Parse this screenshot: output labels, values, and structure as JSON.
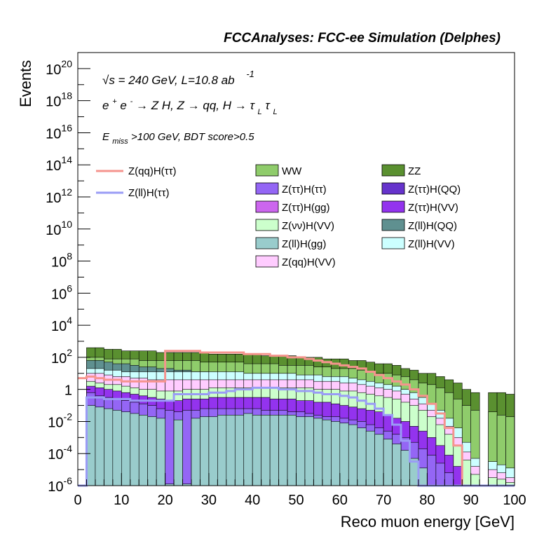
{
  "chart_data": {
    "type": "area",
    "title": "FCCAnalyses: FCC-ee Simulation (Delphes)",
    "xlabel": "Reco muon energy [GeV]",
    "ylabel": "Events",
    "xlim": [
      0,
      100
    ],
    "ylim": [
      1e-06,
      1e+21
    ],
    "ylog": true,
    "x_ticks": [
      "0",
      "10",
      "20",
      "30",
      "40",
      "50",
      "60",
      "70",
      "80",
      "90",
      "100"
    ],
    "y_ticks": [
      {
        "base": "10",
        "exp": "20"
      },
      {
        "base": "10",
        "exp": "18"
      },
      {
        "base": "10",
        "exp": "16"
      },
      {
        "base": "10",
        "exp": "14"
      },
      {
        "base": "10",
        "exp": "12"
      },
      {
        "base": "10",
        "exp": "10"
      },
      {
        "base": "10",
        "exp": "8"
      },
      {
        "base": "10",
        "exp": "6"
      },
      {
        "base": "10",
        "exp": "4"
      },
      {
        "base": "10",
        "exp": "2"
      },
      {
        "base": "1",
        "exp": ""
      },
      {
        "base": "10",
        "exp": "-2"
      },
      {
        "base": "10",
        "exp": "-4"
      },
      {
        "base": "10",
        "exp": "-6"
      }
    ],
    "annotations": {
      "line1_pre": "√s = 240 GeV, L=10.8 ab",
      "line1_sup": "-1",
      "line2": "e⁺e⁻ → Z H, Z → qq, H → τ_L τ_L",
      "line2_parts": [
        "e",
        "+",
        "e",
        "-",
        " → Z H, Z  → qq, H  → τ",
        "L",
        "τ",
        "L"
      ],
      "line3_pre": "E",
      "line3_sub": "miss",
      "line3_post": ">100 GeV, BDT score>0.5"
    },
    "legend_signals": [
      {
        "name": "Z(qq)H(ττ)",
        "color": "#f5948e"
      },
      {
        "name": "Z(ll)H(ττ)",
        "color": "#9a9cf5"
      }
    ],
    "legend_backgrounds": [
      {
        "name": "WW",
        "color": "#8fcc6b"
      },
      {
        "name": "ZZ",
        "color": "#5a9030"
      },
      {
        "name": "Z(ττ)H(ττ)",
        "color": "#9466f5"
      },
      {
        "name": "Z(ττ)H(QQ)",
        "color": "#6633cc"
      },
      {
        "name": "Z(ττ)H(gg)",
        "color": "#cc66ee"
      },
      {
        "name": "Z(ττ)H(VV)",
        "color": "#9333ee"
      },
      {
        "name": "Z(νν)H(VV)",
        "color": "#ccffcc"
      },
      {
        "name": "Z(ll)H(QQ)",
        "color": "#5f9090"
      },
      {
        "name": "Z(ll)H(gg)",
        "color": "#99cccc"
      },
      {
        "name": "Z(ll)H(VV)",
        "color": "#ccffff"
      },
      {
        "name": "Z(qq)H(VV)",
        "color": "#ffccff"
      }
    ],
    "bin_width": 2,
    "stack_envelopes": {
      "note": "cumulative log10(events) at bin left edges 0,2,...,98 for top of each stacked layer",
      "ZZ": [
        -9,
        2.6,
        2.6,
        2.5,
        2.5,
        2.4,
        2.4,
        2.4,
        2.4,
        2.3,
        2.3,
        2.3,
        2.3,
        2.3,
        2.3,
        2.2,
        2.2,
        2.2,
        2.2,
        2.2,
        2.2,
        2.1,
        2.1,
        2.1,
        2.1,
        2.0,
        2.0,
        2.0,
        1.9,
        1.9,
        1.9,
        1.8,
        1.8,
        1.7,
        1.6,
        1.6,
        1.5,
        1.3,
        1.2,
        1.0,
        1.0,
        0.8,
        0.6,
        0.4,
        0.0,
        -0.2,
        -9,
        -0.2,
        -0.2,
        -0.3
      ],
      "WW": [
        -9,
        2.0,
        2.0,
        1.9,
        1.9,
        1.9,
        1.9,
        1.8,
        1.8,
        1.8,
        1.8,
        1.8,
        1.8,
        1.8,
        1.7,
        1.7,
        1.7,
        1.7,
        1.7,
        1.6,
        1.6,
        1.6,
        1.6,
        1.5,
        1.5,
        1.5,
        1.5,
        1.4,
        1.4,
        1.3,
        1.3,
        1.3,
        1.2,
        1.1,
        1.0,
        1.0,
        0.9,
        0.8,
        0.6,
        0.4,
        0.3,
        0.1,
        -0.2,
        -0.6,
        -1.0,
        -1.3,
        -9,
        -1.4,
        -1.6,
        -1.7
      ],
      "ZllHQQ": [
        -9,
        1.8,
        1.8,
        1.7,
        1.6,
        1.6,
        1.5,
        1.4,
        1.4,
        1.3,
        1.3,
        1.2,
        1.2,
        1.1,
        1.1,
        1.0,
        1.0,
        1.0,
        1.0,
        0.9,
        0.9,
        0.9,
        0.8,
        0.8,
        0.8,
        0.7,
        0.7,
        0.6,
        0.6,
        0.5,
        0.5,
        0.4,
        0.3,
        0.2,
        0.1,
        0.0,
        -0.1,
        -0.3,
        -0.5,
        -0.8,
        -1.2,
        -1.6,
        -2.0,
        -2.6,
        -3.5,
        -4.5,
        -9,
        -4.6,
        -4.8,
        -5.0
      ],
      "ZllHVV": [
        -9,
        1.3,
        1.3,
        1.2,
        1.2,
        1.1,
        1.1,
        1.1,
        1.1,
        1.1,
        1.1,
        1.1,
        1.1,
        1.1,
        1.1,
        1.1,
        1.1,
        1.1,
        1.1,
        1.0,
        1.0,
        1.0,
        1.0,
        1.0,
        1.0,
        0.9,
        0.9,
        0.9,
        0.8,
        0.8,
        0.8,
        0.7,
        0.6,
        0.5,
        0.4,
        0.3,
        0.2,
        0.0,
        -0.2,
        -0.5,
        -0.9,
        -1.3,
        -1.8,
        -2.4,
        -3.3,
        -4.3,
        -9,
        -4.5,
        -4.7,
        -4.9
      ],
      "ZqqHVV": [
        -9,
        1.0,
        1.0,
        0.9,
        0.8,
        0.8,
        0.7,
        0.7,
        0.6,
        0.6,
        0.6,
        0.6,
        0.6,
        0.6,
        0.6,
        0.6,
        0.6,
        0.6,
        0.6,
        0.6,
        0.6,
        0.6,
        0.6,
        0.6,
        0.6,
        0.6,
        0.6,
        0.5,
        0.5,
        0.5,
        0.4,
        0.4,
        0.3,
        0.2,
        0.1,
        0.0,
        -0.1,
        -0.3,
        -0.6,
        -0.9,
        -1.3,
        -1.8,
        -2.3,
        -3.0,
        -3.9,
        -4.8,
        -9,
        -5.0,
        -5.2,
        -5.5
      ],
      "ZnnHVV": [
        -9,
        0.5,
        0.4,
        0.3,
        0.3,
        0.2,
        0.1,
        0.0,
        0.0,
        -0.1,
        -0.1,
        -0.1,
        0.0,
        0.0,
        0.0,
        0.1,
        0.1,
        0.1,
        0.1,
        0.1,
        0.1,
        0.1,
        0.1,
        0.1,
        0.1,
        0.1,
        0.1,
        0.0,
        0.0,
        0.0,
        -0.1,
        -0.1,
        -0.2,
        -0.3,
        -0.4,
        -0.5,
        -0.6,
        -0.8,
        -1.0,
        -1.3,
        -1.7,
        -2.2,
        -2.8,
        -3.5,
        -4.4,
        -5.3,
        -9,
        -5.5,
        -5.6,
        -5.8
      ],
      "ZttHVV": [
        -9,
        0.2,
        0.1,
        0.0,
        -0.1,
        -0.2,
        -0.3,
        -0.4,
        -0.5,
        -0.6,
        -0.7,
        -0.7,
        -0.6,
        -0.6,
        -0.6,
        -0.5,
        -0.5,
        -0.5,
        -0.5,
        -0.5,
        -0.5,
        -0.5,
        -0.6,
        -0.6,
        -0.6,
        -0.7,
        -0.7,
        -0.8,
        -0.8,
        -0.9,
        -1.0,
        -1.1,
        -1.2,
        -1.3,
        -1.4,
        -1.6,
        -1.8,
        -2.0,
        -2.3,
        -2.6,
        -3.0,
        -3.5,
        -4.1,
        -4.8,
        -9,
        -9,
        -9,
        -9,
        -9,
        -9
      ],
      "ZttHtt": [
        -9,
        -0.2,
        -0.4,
        -0.5,
        -0.6,
        -0.7,
        -0.8,
        -0.9,
        -1.0,
        -1.2,
        -1.3,
        -1.4,
        -1.3,
        -1.3,
        -1.2,
        -1.2,
        -1.2,
        -1.2,
        -1.2,
        -1.2,
        -1.2,
        -1.3,
        -1.3,
        -1.3,
        -1.4,
        -1.4,
        -1.5,
        -1.6,
        -1.7,
        -1.7,
        -1.8,
        -1.9,
        -2.0,
        -2.2,
        -2.4,
        -2.6,
        -2.8,
        -3.0,
        -3.3,
        -3.7,
        -4.1,
        -4.6,
        -5.2,
        -9,
        -9,
        -9,
        -9,
        -9,
        -9,
        -9
      ],
      "ZllHgg": [
        -9,
        -1.0,
        -1.1,
        -1.2,
        -1.3,
        -1.4,
        -1.5,
        -1.6,
        -1.7,
        -1.8,
        -5.9,
        -1.9,
        -5.9,
        -1.8,
        -1.7,
        -1.7,
        -1.6,
        -1.6,
        -1.6,
        -1.5,
        -1.6,
        -1.6,
        -1.6,
        -1.6,
        -1.6,
        -1.7,
        -1.7,
        -1.8,
        -1.9,
        -2.0,
        -2.1,
        -2.2,
        -2.4,
        -2.6,
        -2.8,
        -3.1,
        -3.4,
        -3.8,
        -4.3,
        -4.9,
        -9,
        -9,
        -9,
        -9,
        -9,
        -9,
        -9,
        -9,
        -9,
        -9
      ]
    },
    "signal_ZqqHtt_log10": [
      0.7,
      0.8,
      0.7,
      0.6,
      0.6,
      0.5,
      0.5,
      0.5,
      0.5,
      0.5,
      2.4,
      2.4,
      2.4,
      2.4,
      2.3,
      2.3,
      2.3,
      2.3,
      2.3,
      2.2,
      2.2,
      2.2,
      2.1,
      2.1,
      2.0,
      2.0,
      1.9,
      1.8,
      1.7,
      1.6,
      1.5,
      1.4,
      1.3,
      1.1,
      0.9,
      0.7,
      0.5,
      0.3,
      0.0,
      -0.4,
      -0.9,
      -1.5,
      -2.4,
      -3.5,
      -6.5,
      -9,
      -9,
      -9,
      -9,
      -9
    ],
    "signal_ZllHtt_log10": [
      -6.5,
      -0.5,
      -0.5,
      -0.6,
      -0.6,
      -0.6,
      -0.7,
      -0.7,
      -0.7,
      -0.7,
      -0.7,
      -0.3,
      -0.3,
      -0.3,
      -0.3,
      -0.2,
      -0.2,
      -0.1,
      0.0,
      0.0,
      0.1,
      0.1,
      0.1,
      0.0,
      0.0,
      -0.1,
      -0.1,
      -0.2,
      -0.3,
      -0.3,
      -0.4,
      -0.5,
      -0.7,
      -0.9,
      -1.2,
      -1.6,
      -2.2,
      -3.2,
      -4.5,
      -6.5,
      -9,
      -9,
      -9,
      -9,
      -9,
      -9,
      -9,
      -9,
      -9,
      -9
    ]
  }
}
